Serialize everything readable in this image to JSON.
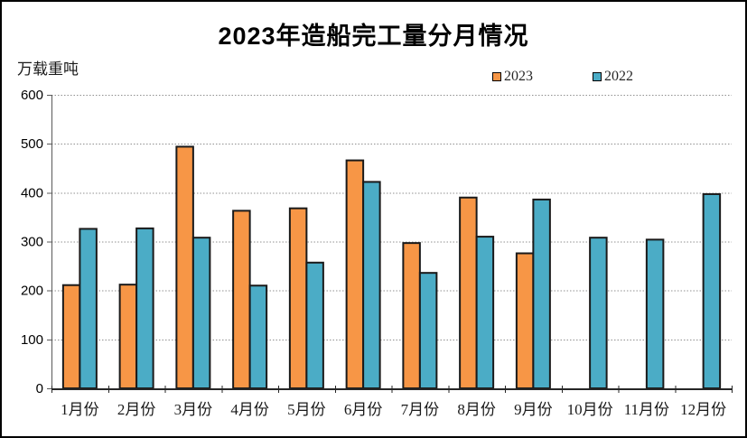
{
  "title": "2023年造船完工量分月情况",
  "unit_label": "万载重吨",
  "legend": {
    "items": [
      {
        "label": "2023",
        "color": "#F79646"
      },
      {
        "label": "2022",
        "color": "#4BACC6"
      }
    ]
  },
  "chart_data": {
    "type": "bar",
    "title": "2023年造船完工量分月情况",
    "xlabel": "",
    "ylabel": "万载重吨",
    "categories": [
      "1月份",
      "2月份",
      "3月份",
      "4月份",
      "5月份",
      "6月份",
      "7月份",
      "8月份",
      "9月份",
      "10月份",
      "11月份",
      "12月份"
    ],
    "series": [
      {
        "name": "2023",
        "color": "#F79646",
        "values": [
          211,
          212,
          494,
          363,
          368,
          466,
          297,
          390,
          276,
          null,
          null,
          null
        ]
      },
      {
        "name": "2022",
        "color": "#4BACC6",
        "values": [
          326,
          327,
          308,
          210,
          257,
          422,
          236,
          310,
          386,
          308,
          304,
          397
        ]
      }
    ],
    "ylim": [
      0,
      600
    ],
    "ytick_interval": 100,
    "ytick_labels": [
      "0",
      "100",
      "200",
      "300",
      "400",
      "500",
      "600"
    ],
    "grid": "horizontal-dotted",
    "legend_position": "top-right",
    "bar_outline_color": "#1a1a1a",
    "gridline_color": "#909090",
    "axis_color": "#262626"
  }
}
